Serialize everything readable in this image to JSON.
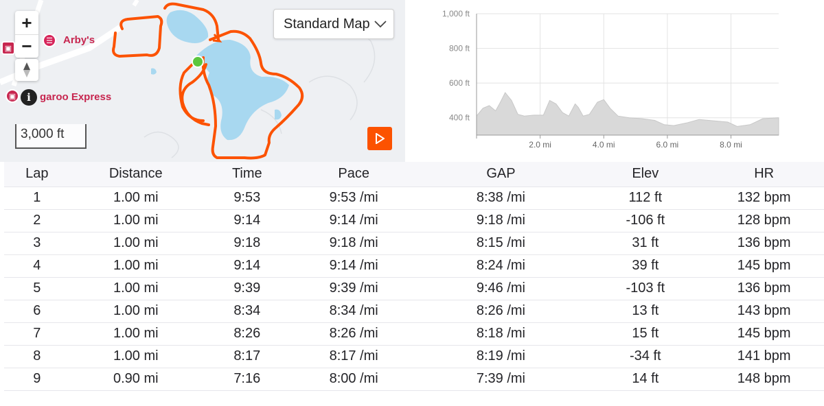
{
  "map": {
    "map_type_label": "Standard Map",
    "scale_label": "3,000 ft",
    "zoom_in_label": "+",
    "zoom_out_label": "−",
    "info_label": "i",
    "pois": [
      {
        "label": "Arby's"
      },
      {
        "label": "garoo Express"
      }
    ],
    "route_color": "#fc5200",
    "water_color": "#a8d8f0",
    "start_marker_color": "#5cc63d"
  },
  "elevation_chart": {
    "chart_data": {
      "type": "area",
      "y_ticks": [
        "1,000 ft",
        "800 ft",
        "600 ft",
        "400 ft"
      ],
      "x_ticks": [
        "2.0 mi",
        "4.0 mi",
        "6.0 mi",
        "8.0 mi"
      ],
      "ylim": [
        300,
        1000
      ],
      "xlim": [
        0,
        9.5
      ],
      "x": [
        0,
        0.2,
        0.4,
        0.6,
        0.75,
        0.9,
        1.1,
        1.3,
        1.5,
        1.8,
        2.1,
        2.3,
        2.5,
        2.7,
        2.9,
        3.1,
        3.2,
        3.35,
        3.55,
        3.8,
        4.0,
        4.2,
        4.45,
        4.8,
        5.2,
        5.6,
        5.9,
        6.2,
        6.6,
        7.0,
        7.3,
        7.6,
        7.9,
        8.2,
        8.6,
        9.0,
        9.5
      ],
      "y": [
        410,
        455,
        470,
        440,
        490,
        545,
        500,
        420,
        410,
        415,
        415,
        500,
        480,
        430,
        410,
        480,
        460,
        410,
        420,
        490,
        505,
        455,
        410,
        400,
        395,
        385,
        360,
        355,
        370,
        390,
        385,
        380,
        375,
        350,
        360,
        395,
        400
      ],
      "grid": true
    }
  },
  "laps_table": {
    "headers": [
      "Lap",
      "Distance",
      "Time",
      "Pace",
      "GAP",
      "Elev",
      "HR"
    ],
    "rows": [
      [
        "1",
        "1.00 mi",
        "9:53",
        "9:53 /mi",
        "8:38 /mi",
        "112 ft",
        "132 bpm"
      ],
      [
        "2",
        "1.00 mi",
        "9:14",
        "9:14 /mi",
        "9:18 /mi",
        "-106 ft",
        "128 bpm"
      ],
      [
        "3",
        "1.00 mi",
        "9:18",
        "9:18 /mi",
        "8:15 /mi",
        "31 ft",
        "136 bpm"
      ],
      [
        "4",
        "1.00 mi",
        "9:14",
        "9:14 /mi",
        "8:24 /mi",
        "39 ft",
        "145 bpm"
      ],
      [
        "5",
        "1.00 mi",
        "9:39",
        "9:39 /mi",
        "9:46 /mi",
        "-103 ft",
        "136 bpm"
      ],
      [
        "6",
        "1.00 mi",
        "8:34",
        "8:34 /mi",
        "8:26 /mi",
        "13 ft",
        "143 bpm"
      ],
      [
        "7",
        "1.00 mi",
        "8:26",
        "8:26 /mi",
        "8:18 /mi",
        "15 ft",
        "145 bpm"
      ],
      [
        "8",
        "1.00 mi",
        "8:17",
        "8:17 /mi",
        "8:19 /mi",
        "-34 ft",
        "141 bpm"
      ],
      [
        "9",
        "0.90 mi",
        "7:16",
        "8:00 /mi",
        "7:39 /mi",
        "14 ft",
        "148 bpm"
      ]
    ]
  }
}
